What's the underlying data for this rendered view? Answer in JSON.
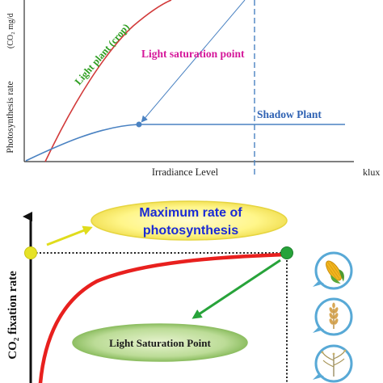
{
  "chart_data": [
    {
      "type": "line",
      "title": "",
      "xlabel": "Irradiance Level",
      "x_unit": "klux",
      "ylabel": "Photosynthesis rate",
      "y_unit_visible": "(CO₂ mg/d",
      "grid": false,
      "series": [
        {
          "name": "Light plant (crop)",
          "color": "#d23a3a"
        },
        {
          "name": "Shadow Plant",
          "color": "#4a82c2"
        }
      ],
      "annotations": {
        "saturation_label": "Light saturation point",
        "saturation_color": "#d5179a"
      }
    },
    {
      "type": "line",
      "title": "",
      "ylabel": "CO₂ fixation rate",
      "grid": false,
      "series": [
        {
          "name": "",
          "color": "#e8201e"
        }
      ],
      "annotations": {
        "max_rate_label_line1": "Maximum rate of",
        "max_rate_label_line2": "photosynthesis",
        "max_rate_color": "#1a2ad6",
        "saturation_label": "Light Saturation Point",
        "point_colors": {
          "max": "#e6e227",
          "saturation": "#27a33a"
        }
      },
      "icons": [
        "corn-icon",
        "wheat-icon",
        "seedling-icon"
      ]
    }
  ]
}
